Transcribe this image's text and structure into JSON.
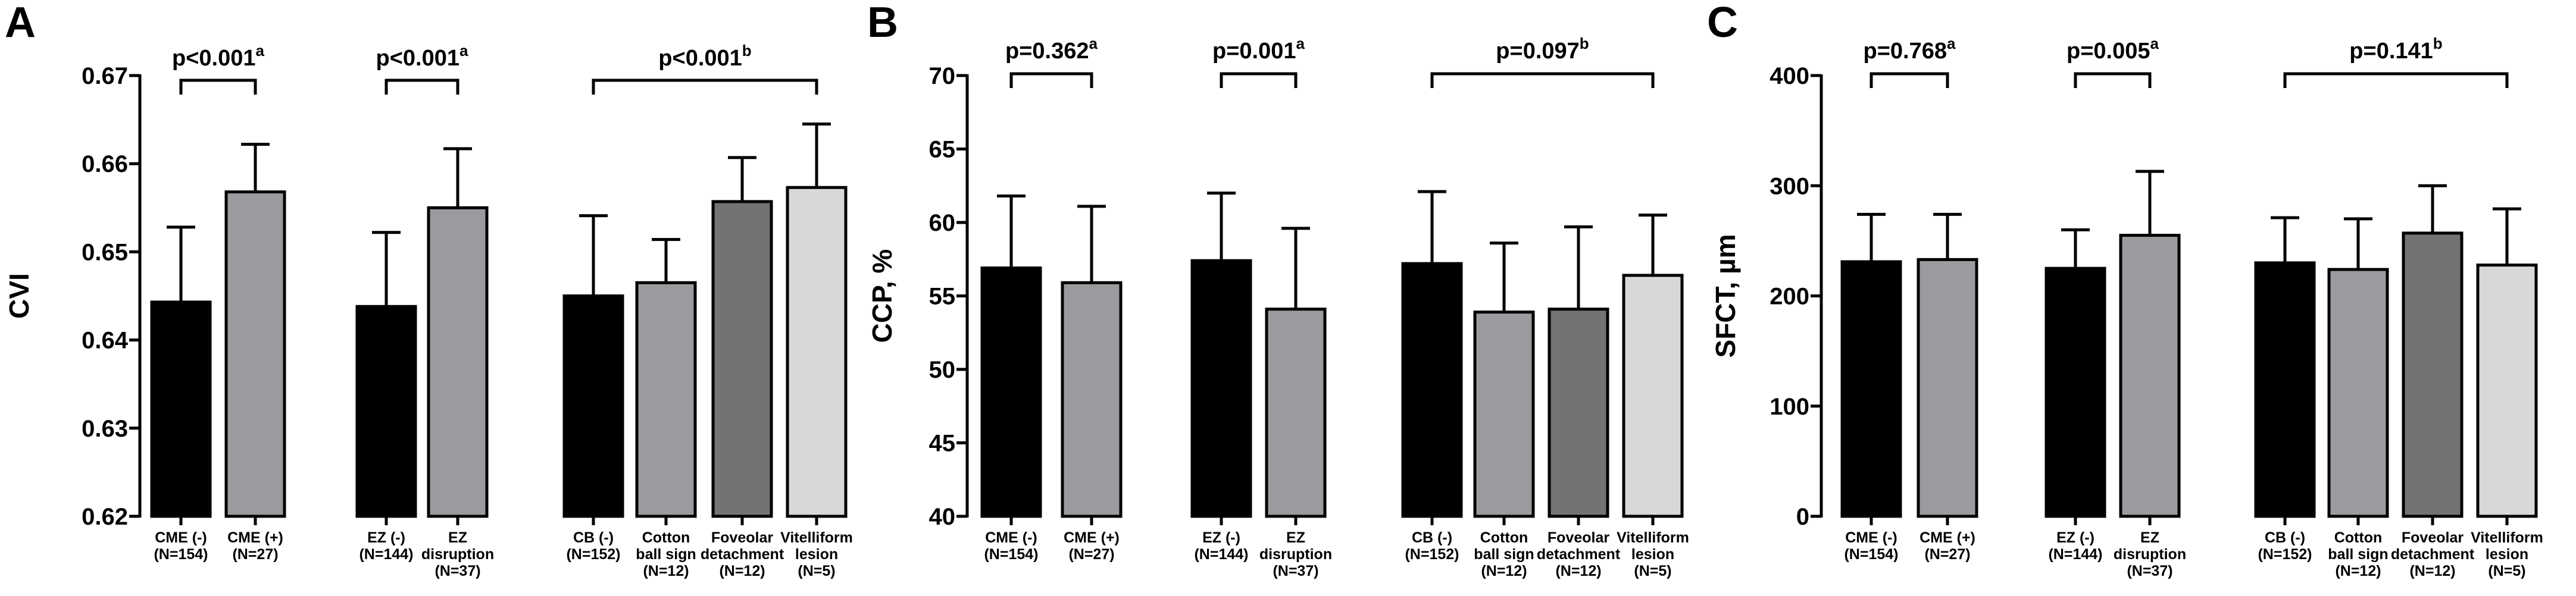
{
  "chart_data": [
    {
      "type": "bar",
      "panel": "A",
      "ylabel": "CVI",
      "ylim": [
        0.62,
        0.67
      ],
      "yticks": [
        "0.62",
        "0.63",
        "0.64",
        "0.65",
        "0.66",
        "0.67"
      ],
      "bars": [
        {
          "label": [
            "CME (-)",
            "(N=154)"
          ],
          "value": 0.6443,
          "err": 0.0085,
          "fill": "#000000"
        },
        {
          "label": [
            "CME (+)",
            "(N=27)"
          ],
          "value": 0.6568,
          "err": 0.0054,
          "fill": "#9b9b9f"
        },
        {
          "label": [
            "EZ (-)",
            "(N=144)"
          ],
          "value": 0.6438,
          "err": 0.0084,
          "fill": "#000000"
        },
        {
          "label": [
            "EZ",
            "disruption",
            "(N=37)"
          ],
          "value": 0.655,
          "err": 0.0067,
          "fill": "#9b9b9f"
        },
        {
          "label": [
            "CB (-)",
            "(N=152)"
          ],
          "value": 0.645,
          "err": 0.0091,
          "fill": "#000000"
        },
        {
          "label": [
            "Cotton",
            "ball sign",
            "(N=12)"
          ],
          "value": 0.6465,
          "err": 0.0049,
          "fill": "#9b9b9f"
        },
        {
          "label": [
            "Foveolar",
            "detachment",
            "(N=12)"
          ],
          "value": 0.6557,
          "err": 0.005,
          "fill": "#737373"
        },
        {
          "label": [
            "Vitelliform",
            "lesion",
            "(N=5)"
          ],
          "value": 0.6573,
          "err": 0.0072,
          "fill": "#d8d8d8"
        }
      ],
      "comparisons": [
        {
          "text": "p<0.001",
          "sup": "a",
          "from": 0,
          "to": 1
        },
        {
          "text": "p<0.001",
          "sup": "a",
          "from": 2,
          "to": 3
        },
        {
          "text": "p<0.001",
          "sup": "b",
          "from": 4,
          "to": 7
        }
      ]
    },
    {
      "type": "bar",
      "panel": "B",
      "ylabel": "CCP, %",
      "ylim": [
        40,
        70
      ],
      "yticks": [
        "40",
        "45",
        "50",
        "55",
        "60",
        "65",
        "70"
      ],
      "bars": [
        {
          "label": [
            "CME (-)",
            "(N=154)"
          ],
          "value": 56.9,
          "err": 4.9,
          "fill": "#000000"
        },
        {
          "label": [
            "CME (+)",
            "(N=27)"
          ],
          "value": 55.9,
          "err": 5.2,
          "fill": "#9b9b9f"
        },
        {
          "label": [
            "EZ (-)",
            "(N=144)"
          ],
          "value": 57.4,
          "err": 4.6,
          "fill": "#000000"
        },
        {
          "label": [
            "EZ",
            "disruption",
            "(N=37)"
          ],
          "value": 54.1,
          "err": 5.5,
          "fill": "#9b9b9f"
        },
        {
          "label": [
            "CB (-)",
            "(N=152)"
          ],
          "value": 57.2,
          "err": 4.9,
          "fill": "#000000"
        },
        {
          "label": [
            "Cotton",
            "ball sign",
            "(N=12)"
          ],
          "value": 53.9,
          "err": 4.7,
          "fill": "#9b9b9f"
        },
        {
          "label": [
            "Foveolar",
            "detachment",
            "(N=12)"
          ],
          "value": 54.1,
          "err": 5.6,
          "fill": "#737373"
        },
        {
          "label": [
            "Vitelliform",
            "lesion",
            "(N=5)"
          ],
          "value": 56.4,
          "err": 4.1,
          "fill": "#d8d8d8"
        }
      ],
      "comparisons": [
        {
          "text": "p=0.362",
          "sup": "a",
          "from": 0,
          "to": 1
        },
        {
          "text": "p=0.001",
          "sup": "a",
          "from": 2,
          "to": 3
        },
        {
          "text": "p=0.097",
          "sup": "b",
          "from": 4,
          "to": 7
        }
      ]
    },
    {
      "type": "bar",
      "panel": "C",
      "ylabel": "SFCT, µm",
      "ylim": [
        0,
        400
      ],
      "yticks": [
        "0",
        "100",
        "200",
        "300",
        "400"
      ],
      "bars": [
        {
          "label": [
            "CME (-)",
            "(N=154)"
          ],
          "value": 231,
          "err": 43,
          "fill": "#000000"
        },
        {
          "label": [
            "CME (+)",
            "(N=27)"
          ],
          "value": 233,
          "err": 41,
          "fill": "#9b9b9f"
        },
        {
          "label": [
            "EZ (-)",
            "(N=144)"
          ],
          "value": 225,
          "err": 35,
          "fill": "#000000"
        },
        {
          "label": [
            "EZ",
            "disruption",
            "(N=37)"
          ],
          "value": 255,
          "err": 58,
          "fill": "#9b9b9f"
        },
        {
          "label": [
            "CB (-)",
            "(N=152)"
          ],
          "value": 230,
          "err": 41,
          "fill": "#000000"
        },
        {
          "label": [
            "Cotton",
            "ball sign",
            "(N=12)"
          ],
          "value": 224,
          "err": 46,
          "fill": "#9b9b9f"
        },
        {
          "label": [
            "Foveolar",
            "detachment",
            "(N=12)"
          ],
          "value": 257,
          "err": 43,
          "fill": "#737373"
        },
        {
          "label": [
            "Vitelliform",
            "lesion",
            "(N=5)"
          ],
          "value": 228,
          "err": 51,
          "fill": "#d8d8d8"
        }
      ],
      "comparisons": [
        {
          "text": "p=0.768",
          "sup": "a",
          "from": 0,
          "to": 1
        },
        {
          "text": "p=0.005",
          "sup": "a",
          "from": 2,
          "to": 3
        },
        {
          "text": "p=0.141",
          "sup": "b",
          "from": 4,
          "to": 7
        }
      ]
    }
  ]
}
